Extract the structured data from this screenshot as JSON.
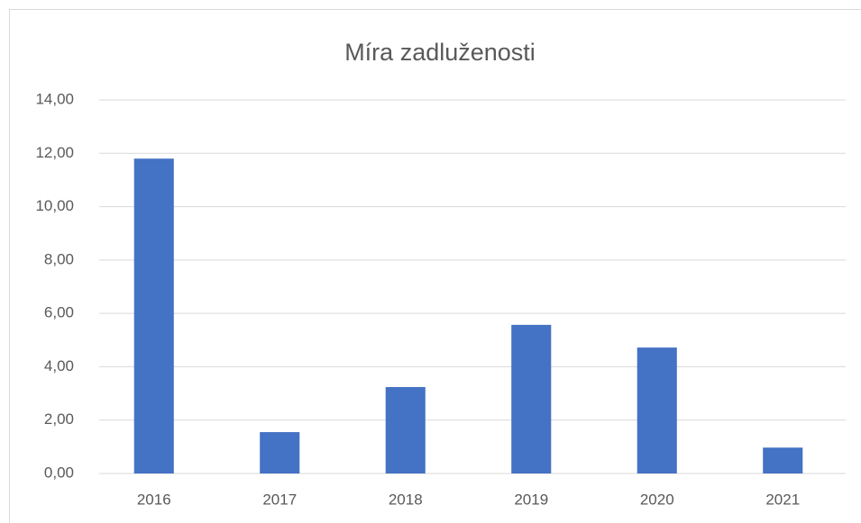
{
  "chart_data": {
    "type": "bar",
    "title": "Míra zadluženosti",
    "categories": [
      "2016",
      "2017",
      "2018",
      "2019",
      "2020",
      "2021"
    ],
    "values": [
      11.8,
      1.55,
      3.24,
      5.57,
      4.72,
      0.97
    ],
    "color": "#4472c4",
    "ylim": [
      0,
      14
    ],
    "yticks": [
      {
        "value": 0,
        "label": "0,00"
      },
      {
        "value": 2,
        "label": "2,00"
      },
      {
        "value": 4,
        "label": "4,00"
      },
      {
        "value": 6,
        "label": "6,00"
      },
      {
        "value": 8,
        "label": "8,00"
      },
      {
        "value": 10,
        "label": "10,00"
      },
      {
        "value": 12,
        "label": "12,00"
      },
      {
        "value": 14,
        "label": "14,00"
      }
    ],
    "grid": true
  }
}
